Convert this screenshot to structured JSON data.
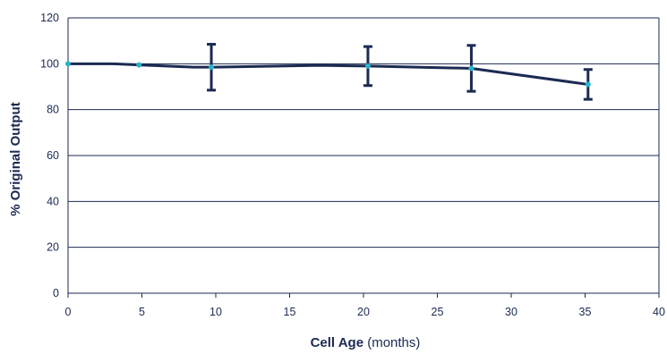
{
  "chart_data": {
    "type": "line",
    "title": "",
    "xlabel_bold": "Cell Age",
    "xlabel_rest": " (months)",
    "ylabel": "% Original Output",
    "xlim": [
      0,
      40
    ],
    "ylim": [
      0,
      120
    ],
    "x_ticks": [
      0,
      5,
      10,
      15,
      20,
      25,
      30,
      35,
      40
    ],
    "x_tick_labels": [
      "0",
      "5",
      "10",
      "15",
      "20",
      "25",
      "30",
      "35",
      "40"
    ],
    "y_ticks": [
      0,
      20,
      40,
      60,
      80,
      100,
      120
    ],
    "y_tick_labels": [
      "0",
      "20",
      "40",
      "60",
      "80",
      "100",
      "120"
    ],
    "grid": "horizontal",
    "colors": {
      "line": "#1b2a52",
      "marker": "#26b5c8",
      "grid": "#1b2a52",
      "text": "#1b2a52"
    },
    "series": [
      {
        "x": [
          0,
          3,
          4.8,
          8.5,
          9.7,
          17,
          20.3,
          27.3,
          35.2
        ],
        "y": [
          100,
          100,
          99.5,
          98.5,
          98.5,
          99.3,
          99,
          98,
          91
        ],
        "markers": [
          {
            "x": 0,
            "y": 100
          },
          {
            "x": 4.8,
            "y": 99.5
          },
          {
            "x": 9.7,
            "y": 98.5
          },
          {
            "x": 20.3,
            "y": 99
          },
          {
            "x": 27.3,
            "y": 98
          },
          {
            "x": 35.2,
            "y": 91
          }
        ],
        "error_bars": [
          {
            "x": 9.7,
            "low": 88.5,
            "high": 108.5
          },
          {
            "x": 20.3,
            "low": 90.5,
            "high": 107.5
          },
          {
            "x": 27.3,
            "low": 88,
            "high": 108
          },
          {
            "x": 35.2,
            "low": 84.5,
            "high": 97.5
          }
        ]
      }
    ]
  }
}
